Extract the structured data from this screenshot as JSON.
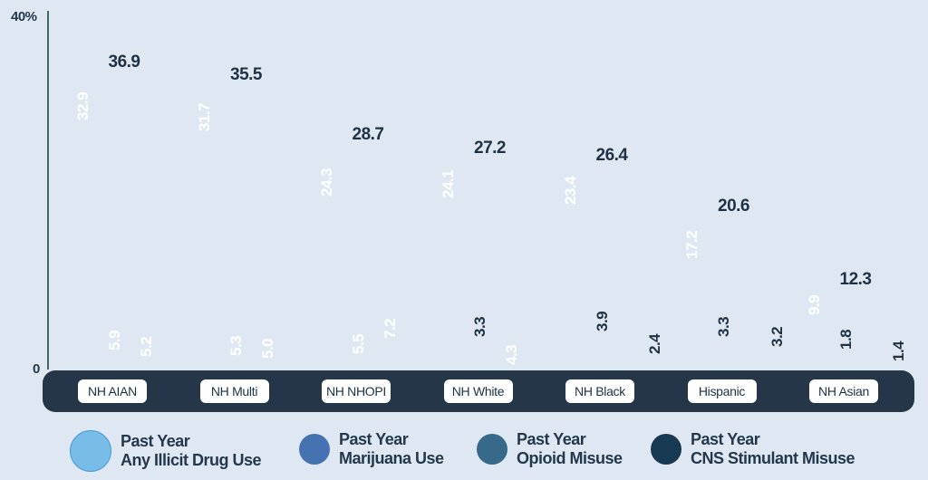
{
  "chart_data": {
    "type": "bar",
    "title": "",
    "xlabel": "",
    "ylabel": "",
    "ylim": [
      0,
      40
    ],
    "y_ticks": [
      "0",
      "40%"
    ],
    "grid": false,
    "legend_position": "bottom",
    "categories": [
      "NH AIAN",
      "NH Multi",
      "NH NHOPI",
      "NH White",
      "NH Black",
      "Hispanic",
      "NH Asian"
    ],
    "series": [
      {
        "name": "Past Year Any Illicit Drug Use",
        "color": "#78bce8",
        "values": [
          36.9,
          35.5,
          28.7,
          27.2,
          26.4,
          20.6,
          12.3
        ]
      },
      {
        "name": "Past Year Marijuana Use",
        "color": "#4572b1",
        "values": [
          32.9,
          31.7,
          24.3,
          24.1,
          23.4,
          17.2,
          9.9
        ]
      },
      {
        "name": "Past Year Opioid Misuse",
        "color": "#36698a",
        "values": [
          5.9,
          5.3,
          5.5,
          3.3,
          3.9,
          3.3,
          1.8
        ]
      },
      {
        "name": "Past Year CNS Stimulant Misuse",
        "color": "#173a52",
        "values": [
          5.2,
          5.0,
          7.2,
          4.3,
          2.4,
          3.2,
          1.4
        ]
      }
    ],
    "value_labels": {
      "illicit": [
        "36.9",
        "35.5",
        "28.7",
        "27.2",
        "26.4",
        "20.6",
        "12.3"
      ],
      "marijuana": [
        "32.9",
        "31.7",
        "24.3",
        "24.1",
        "23.4",
        "17.2",
        "9.9"
      ],
      "opioid": [
        "5.9",
        "5.3",
        "5.5",
        "3.3",
        "3.9",
        "3.3",
        "1.8"
      ],
      "stimulant": [
        "5.2",
        "5.0",
        "7.2",
        "4.3",
        "2.4",
        "3.2",
        "1.4"
      ]
    }
  },
  "axis": {
    "y_max_label": "40%",
    "y_min_label": "0"
  },
  "legend": [
    {
      "line1": "Past Year",
      "line2": "Any Illicit Drug Use",
      "color": "#78bce8"
    },
    {
      "line1": "Past Year",
      "line2": "Marijuana Use",
      "color": "#4572b1"
    },
    {
      "line1": "Past Year",
      "line2": "Opioid Misuse",
      "color": "#36698a"
    },
    {
      "line1": "Past Year",
      "line2": "CNS Stimulant Misuse",
      "color": "#173a52"
    }
  ]
}
